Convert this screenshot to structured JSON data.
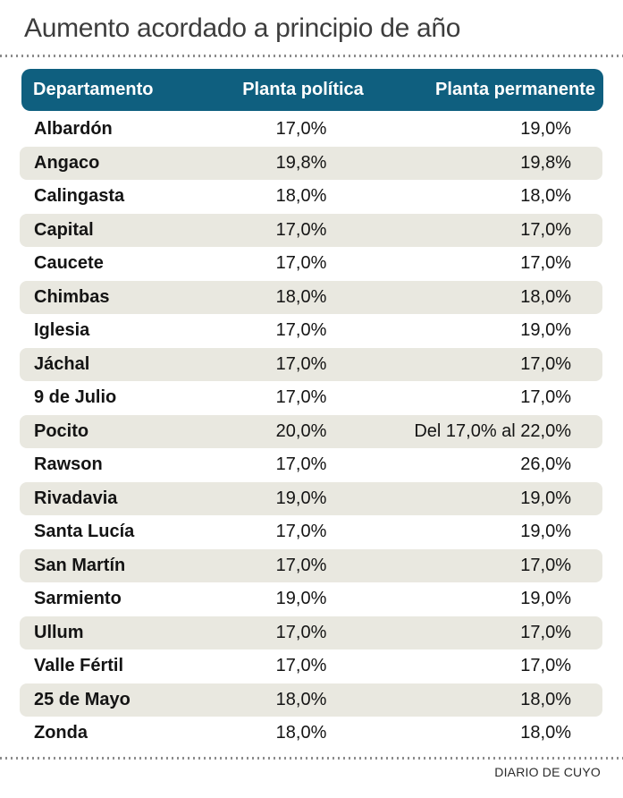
{
  "title": "Aumento acordado a principio de año",
  "footer": {
    "source": "DIARIO DE CUYO"
  },
  "colors": {
    "header_bg": "#0f5f7f",
    "header_text": "#ffffff",
    "row_alt_bg": "#e9e8e0",
    "title_text": "#3d3d3d",
    "body_text": "#141414",
    "dotted_line": "#8c8c8c"
  },
  "chart_data": {
    "type": "table",
    "title": "Aumento acordado a principio de año",
    "source": "DIARIO DE CUYO",
    "columns": [
      "Departamento",
      "Planta política",
      "Planta permanente"
    ],
    "rows": [
      [
        "Albardón",
        "17,0%",
        "19,0%"
      ],
      [
        "Angaco",
        "19,8%",
        "19,8%"
      ],
      [
        "Calingasta",
        "18,0%",
        "18,0%"
      ],
      [
        "Capital",
        "17,0%",
        "17,0%"
      ],
      [
        "Caucete",
        "17,0%",
        "17,0%"
      ],
      [
        "Chimbas",
        "18,0%",
        "18,0%"
      ],
      [
        "Iglesia",
        "17,0%",
        "19,0%"
      ],
      [
        "Jáchal",
        "17,0%",
        "17,0%"
      ],
      [
        "9 de Julio",
        "17,0%",
        "17,0%"
      ],
      [
        "Pocito",
        "20,0%",
        "Del 17,0% al 22,0%"
      ],
      [
        "Rawson",
        "17,0%",
        "26,0%"
      ],
      [
        "Rivadavia",
        "19,0%",
        "19,0%"
      ],
      [
        "Santa Lucía",
        "17,0%",
        "19,0%"
      ],
      [
        "San Martín",
        "17,0%",
        "17,0%"
      ],
      [
        "Sarmiento",
        "19,0%",
        "19,0%"
      ],
      [
        "Ullum",
        "17,0%",
        "17,0%"
      ],
      [
        "Valle Fértil",
        "17,0%",
        "17,0%"
      ],
      [
        "25 de Mayo",
        "18,0%",
        "18,0%"
      ],
      [
        "Zonda",
        "18,0%",
        "18,0%"
      ]
    ]
  }
}
